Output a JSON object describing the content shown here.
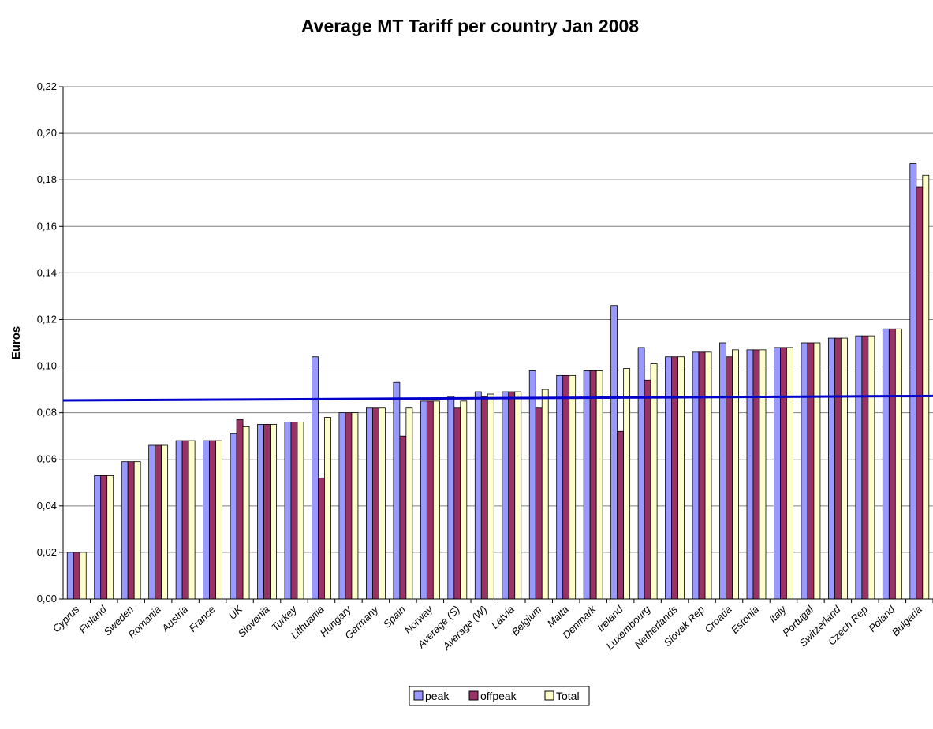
{
  "chart_data": {
    "type": "bar",
    "title": "Average MT Tariff per country Jan 2008",
    "xlabel": "",
    "ylabel": "Euros",
    "ylim": [
      0,
      0.22
    ],
    "yticks": [
      "0,00",
      "0,02",
      "0,04",
      "0,06",
      "0,08",
      "0,10",
      "0,12",
      "0,14",
      "0,16",
      "0,18",
      "0,20",
      "0,22"
    ],
    "grid": true,
    "legend_position": "bottom",
    "categories": [
      "Cyprus",
      "Finland",
      "Sweden",
      "Romania",
      "Austria",
      "France",
      "UK",
      "Slovenia",
      "Turkey",
      "Lithuania",
      "Hungary",
      "Germany",
      "Spain",
      "Norway",
      "Average (S)",
      "Average (W)",
      "Latvia",
      "Belgium",
      "Malta",
      "Denmark",
      "Ireland",
      "Luxembourg",
      "Netherlands",
      "Slovak Rep",
      "Croatia",
      "Estonia",
      "Italy",
      "Portugal",
      "Switzerland",
      "Czech Rep",
      "Poland",
      "Bulgaria"
    ],
    "series": [
      {
        "name": "peak",
        "color": "#9999ff",
        "values": [
          0.02,
          0.053,
          0.059,
          0.066,
          0.068,
          0.068,
          0.071,
          0.075,
          0.076,
          0.104,
          0.08,
          0.082,
          0.093,
          0.085,
          0.087,
          0.089,
          0.089,
          0.098,
          0.096,
          0.098,
          0.126,
          0.108,
          0.104,
          0.106,
          0.11,
          0.107,
          0.108,
          0.11,
          0.112,
          0.113,
          0.116,
          0.187
        ]
      },
      {
        "name": "offpeak",
        "color": "#993366",
        "values": [
          0.02,
          0.053,
          0.059,
          0.066,
          0.068,
          0.068,
          0.077,
          0.075,
          0.076,
          0.052,
          0.08,
          0.082,
          0.07,
          0.085,
          0.082,
          0.087,
          0.089,
          0.082,
          0.096,
          0.098,
          0.072,
          0.094,
          0.104,
          0.106,
          0.104,
          0.107,
          0.108,
          0.11,
          0.112,
          0.113,
          0.116,
          0.177
        ]
      },
      {
        "name": "Total",
        "color": "#ffffcc",
        "values": [
          0.02,
          0.053,
          0.059,
          0.066,
          0.068,
          0.068,
          0.074,
          0.075,
          0.076,
          0.078,
          0.08,
          0.082,
          0.082,
          0.085,
          0.085,
          0.088,
          0.089,
          0.09,
          0.096,
          0.098,
          0.099,
          0.101,
          0.104,
          0.106,
          0.107,
          0.107,
          0.108,
          0.11,
          0.112,
          0.113,
          0.116,
          0.182
        ]
      }
    ],
    "reference_line": {
      "color": "#0000cc",
      "y_start": 0.0853,
      "y_end": 0.0872
    }
  }
}
